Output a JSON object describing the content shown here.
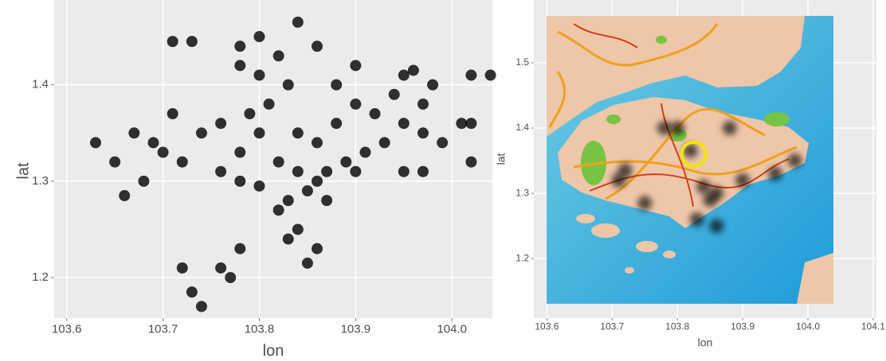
{
  "chart_data": [
    {
      "type": "scatter",
      "xlabel": "lon",
      "ylabel": "lat",
      "color": "#000000",
      "grid": true,
      "xlim": [
        103.587,
        104.042
      ],
      "ylim": [
        1.158,
        1.488
      ],
      "xticks": [
        103.6,
        103.7,
        103.8,
        103.9,
        {
          "value": 104,
          "label": "104.0"
        }
      ],
      "yticks": [
        1.2,
        1.3,
        1.4
      ],
      "x": [
        103.71,
        103.73,
        103.78,
        103.8,
        103.82,
        103.84,
        103.86,
        103.78,
        103.8,
        103.83,
        103.88,
        103.9,
        103.95,
        103.96,
        103.98,
        104.02,
        104.04,
        103.63,
        103.65,
        103.67,
        103.69,
        103.7,
        103.72,
        103.68,
        103.66,
        103.71,
        103.74,
        103.76,
        103.78,
        103.8,
        103.82,
        103.84,
        103.86,
        103.85,
        103.83,
        103.87,
        103.89,
        103.91,
        103.93,
        103.95,
        103.97,
        103.99,
        104.01,
        103.88,
        103.9,
        103.92,
        103.94,
        103.97,
        103.86,
        103.84,
        103.81,
        103.79,
        103.76,
        103.78,
        103.8,
        103.82,
        103.84,
        103.83,
        103.86,
        103.85,
        103.87,
        103.9,
        103.95,
        104.02,
        104.02,
        103.97,
        103.76,
        103.77,
        103.78,
        103.73,
        103.74,
        103.72
      ],
      "values": [
        1.445,
        1.445,
        1.44,
        1.45,
        1.43,
        1.465,
        1.44,
        1.42,
        1.41,
        1.4,
        1.4,
        1.42,
        1.41,
        1.415,
        1.4,
        1.41,
        1.41,
        1.34,
        1.32,
        1.35,
        1.34,
        1.33,
        1.32,
        1.3,
        1.285,
        1.37,
        1.35,
        1.36,
        1.33,
        1.35,
        1.32,
        1.31,
        1.3,
        1.29,
        1.28,
        1.31,
        1.32,
        1.33,
        1.34,
        1.36,
        1.35,
        1.34,
        1.36,
        1.36,
        1.38,
        1.37,
        1.39,
        1.38,
        1.34,
        1.35,
        1.38,
        1.37,
        1.31,
        1.3,
        1.295,
        1.27,
        1.25,
        1.24,
        1.23,
        1.215,
        1.28,
        1.31,
        1.31,
        1.32,
        1.36,
        1.31,
        1.21,
        1.2,
        1.23,
        1.185,
        1.17,
        1.21
      ]
    },
    {
      "type": "density-map",
      "xlabel": "lon",
      "ylabel": "lat",
      "color": "#000000",
      "grid": true,
      "xlim": [
        103.58,
        104.105
      ],
      "ylim": [
        1.109,
        1.596
      ],
      "xticks": [
        103.6,
        103.7,
        103.8,
        103.9,
        {
          "value": 104,
          "label": "104.0"
        },
        104.1
      ],
      "yticks": [
        1.2,
        1.3,
        1.4,
        1.5
      ],
      "x": [
        103.85,
        103.86,
        103.84,
        103.72,
        103.71,
        103.82,
        103.8,
        103.88,
        103.95,
        103.98,
        103.75,
        103.83,
        103.86,
        103.9,
        103.78
      ],
      "values": [
        1.29,
        1.3,
        1.31,
        1.335,
        1.32,
        1.365,
        1.4,
        1.4,
        1.33,
        1.35,
        1.285,
        1.26,
        1.25,
        1.32,
        1.4
      ],
      "highlight": {
        "x": 103.825,
        "y": 1.36,
        "color": "#f2e600"
      }
    }
  ]
}
